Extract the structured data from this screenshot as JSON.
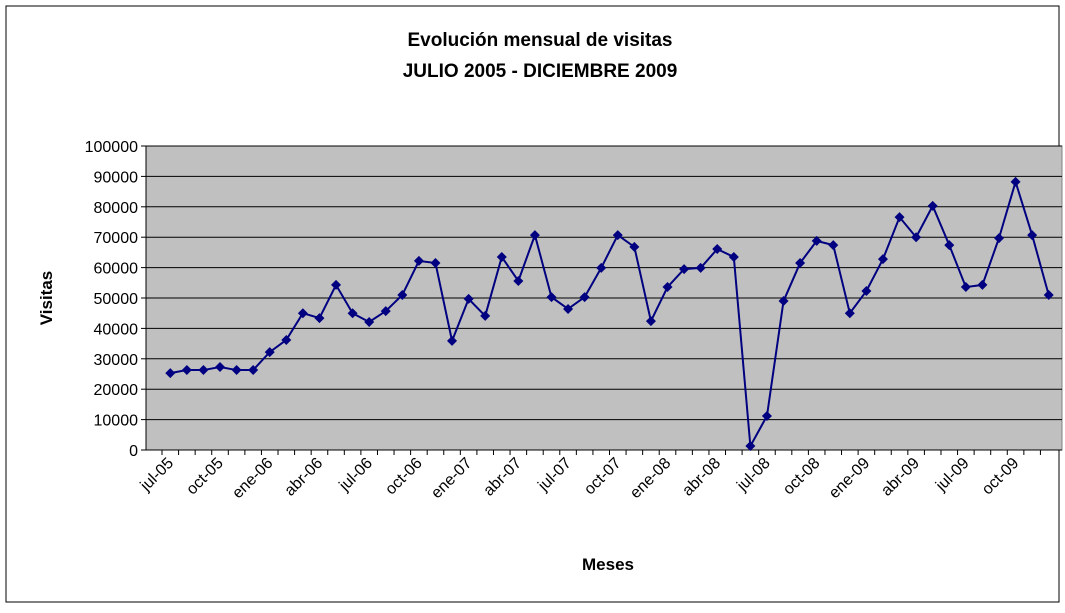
{
  "chart_data": {
    "type": "line",
    "title": "Evolución mensual de visitas",
    "subtitle": "JULIO 2005 - DICIEMBRE 2009",
    "x_label": "Meses",
    "y_label": "Visitas",
    "categories": [
      "jul-05",
      null,
      null,
      "oct-05",
      null,
      null,
      "ene-06",
      null,
      null,
      "abr-06",
      null,
      null,
      "jul-06",
      null,
      null,
      "oct-06",
      null,
      null,
      "ene-07",
      null,
      null,
      "abr-07",
      null,
      null,
      "jul-07",
      null,
      null,
      "oct-07",
      null,
      null,
      "ene-08",
      null,
      null,
      "abr-08",
      null,
      null,
      "jul-08",
      null,
      null,
      "oct-08",
      null,
      null,
      "ene-09",
      null,
      null,
      "abr-09",
      null,
      null,
      "jul-09",
      null,
      null,
      "oct-09",
      null,
      null
    ],
    "series": [
      {
        "name": "Visitas",
        "color": "#000080",
        "values": [
          25300,
          26300,
          26300,
          27300,
          26300,
          26300,
          32200,
          36200,
          45000,
          43400,
          54300,
          45000,
          42100,
          45700,
          51000,
          62200,
          61500,
          35900,
          49700,
          44100,
          63500,
          55600,
          70700,
          50300,
          46400,
          50300,
          59900,
          70700,
          66800,
          42400,
          53600,
          59500,
          59900,
          66100,
          63500,
          1300,
          11200,
          49000,
          61500,
          68800,
          67400,
          45000,
          52300,
          62800,
          76600,
          70000,
          80300,
          67400,
          53600,
          54300,
          69700,
          88200,
          70700,
          51000
        ]
      }
    ],
    "ylim": [
      0,
      100000
    ],
    "yticks": [
      0,
      10000,
      20000,
      30000,
      40000,
      50000,
      60000,
      70000,
      80000,
      90000,
      100000
    ],
    "grid": true,
    "plot_background": "#c0c0c0"
  }
}
